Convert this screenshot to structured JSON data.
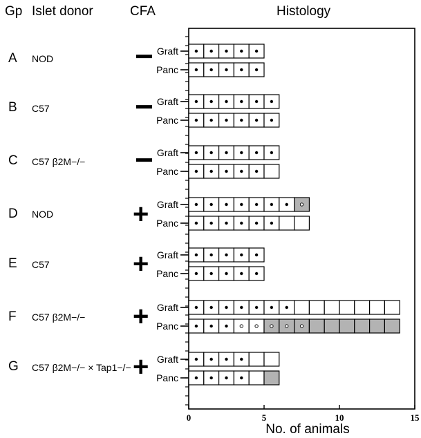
{
  "headers": {
    "group": "Gp",
    "donor": "Islet donor",
    "cfa": "CFA",
    "histology": "Histology"
  },
  "chart_data": {
    "type": "bar",
    "xlabel": "No. of animals",
    "xlim": [
      0,
      15
    ],
    "xticks": [
      "0",
      "5",
      "10",
      "15"
    ],
    "row_labels": [
      "Graft",
      "Panc"
    ],
    "legend": "each square = one animal; filled dot = filled square-white, open circle = open dot, grey fill = shaded square",
    "groups": [
      {
        "id": "A",
        "donor": "NOD",
        "cfa": "−",
        "graft": {
          "total": 5,
          "dots": 5,
          "open": 0,
          "grey": []
        },
        "panc": {
          "total": 5,
          "dots": 5,
          "open": 0,
          "grey": []
        }
      },
      {
        "id": "B",
        "donor": "C57",
        "cfa": "−",
        "graft": {
          "total": 6,
          "dots": 6,
          "open": 0,
          "grey": []
        },
        "panc": {
          "total": 6,
          "dots": 6,
          "open": 0,
          "grey": []
        }
      },
      {
        "id": "C",
        "donor": "C57 β2M−/−",
        "cfa": "−",
        "graft": {
          "total": 6,
          "dots": 6,
          "open": 0,
          "grey": []
        },
        "panc": {
          "total": 6,
          "dots": 5,
          "open": 0,
          "grey": []
        }
      },
      {
        "id": "D",
        "donor": "NOD",
        "cfa": "+",
        "graft": {
          "total": 8,
          "dots": 7,
          "open": 1,
          "grey": [
            8
          ]
        },
        "panc": {
          "total": 8,
          "dots": 6,
          "open": 0,
          "grey": []
        }
      },
      {
        "id": "E",
        "donor": "C57",
        "cfa": "+",
        "graft": {
          "total": 5,
          "dots": 5,
          "open": 0,
          "grey": []
        },
        "panc": {
          "total": 5,
          "dots": 5,
          "open": 0,
          "grey": []
        }
      },
      {
        "id": "F",
        "donor": "C57 β2M−/−",
        "cfa": "+",
        "graft": {
          "total": 14,
          "dots": 7,
          "open": 0,
          "grey": []
        },
        "panc": {
          "total": 14,
          "dots": 3,
          "open": 5,
          "grey": [
            6,
            7,
            8,
            9,
            10,
            11,
            12,
            13,
            14
          ]
        }
      },
      {
        "id": "G",
        "donor": "C57 β2M−/− × Tap1−/−",
        "cfa": "+",
        "graft": {
          "total": 6,
          "dots": 4,
          "open": 0,
          "grey": []
        },
        "panc": {
          "total": 6,
          "dots": 4,
          "open": 0,
          "grey": [
            6
          ]
        }
      }
    ]
  }
}
